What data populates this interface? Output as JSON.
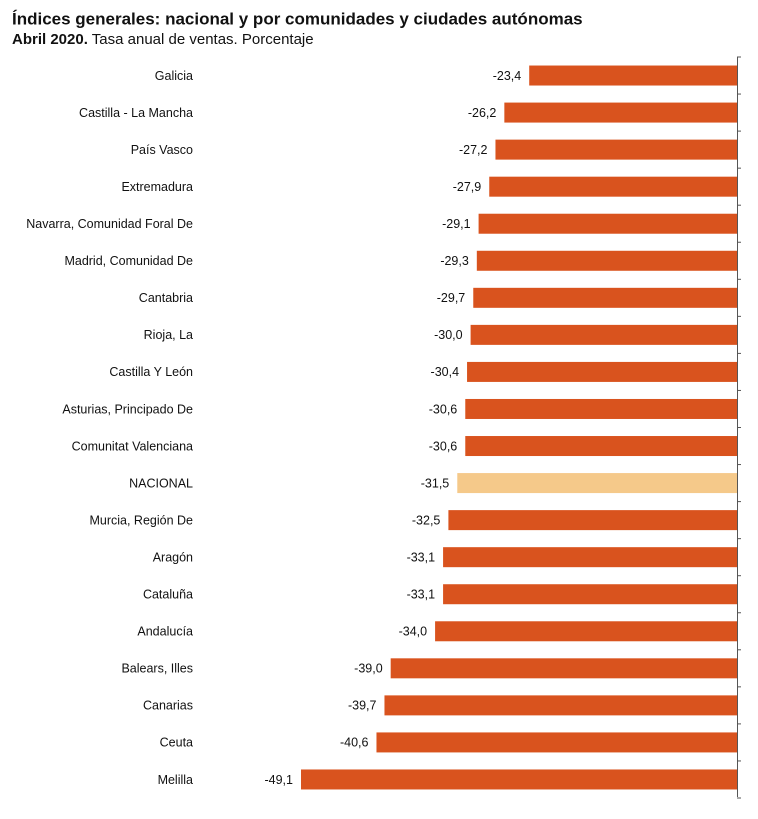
{
  "chart_data": {
    "type": "bar",
    "orientation": "horizontal",
    "title": "Índices generales: nacional y por comunidades y ciudades autónomas",
    "subtitle_bold": "Abril 2020.",
    "subtitle": "Tasa anual de ventas. Porcentaje",
    "categories": [
      "Galicia",
      "Castilla - La Mancha",
      "País Vasco",
      "Extremadura",
      "Navarra, Comunidad Foral De",
      "Madrid, Comunidad De",
      "Cantabria",
      "Rioja, La",
      "Castilla Y León",
      "Asturias, Principado De",
      "Comunitat Valenciana",
      "NACIONAL",
      "Murcia, Región De",
      "Aragón",
      "Cataluña",
      "Andalucía",
      "Balears, Illes",
      "Canarias",
      "Ceuta",
      "Melilla"
    ],
    "values": [
      -23.4,
      -26.2,
      -27.2,
      -27.9,
      -29.1,
      -29.3,
      -29.7,
      -30.0,
      -30.4,
      -30.6,
      -30.6,
      -31.5,
      -32.5,
      -33.1,
      -33.1,
      -34.0,
      -39.0,
      -39.7,
      -40.6,
      -49.1
    ],
    "value_labels": [
      "-23,4",
      "-26,2",
      "-27,2",
      "-27,9",
      "-29,1",
      "-29,3",
      "-29,7",
      "-30,0",
      "-30,4",
      "-30,6",
      "-30,6",
      "-31,5",
      "-32,5",
      "-33,1",
      "-33,1",
      "-34,0",
      "-39,0",
      "-39,7",
      "-40,6",
      "-49,1"
    ],
    "colors": [
      "#d9531e",
      "#d9531e",
      "#d9531e",
      "#d9531e",
      "#d9531e",
      "#d9531e",
      "#d9531e",
      "#d9531e",
      "#d9531e",
      "#d9531e",
      "#d9531e",
      "#f5c98a",
      "#d9531e",
      "#d9531e",
      "#d9531e",
      "#d9531e",
      "#d9531e",
      "#d9531e",
      "#d9531e",
      "#d9531e"
    ],
    "xlim": [
      -50,
      0
    ]
  }
}
